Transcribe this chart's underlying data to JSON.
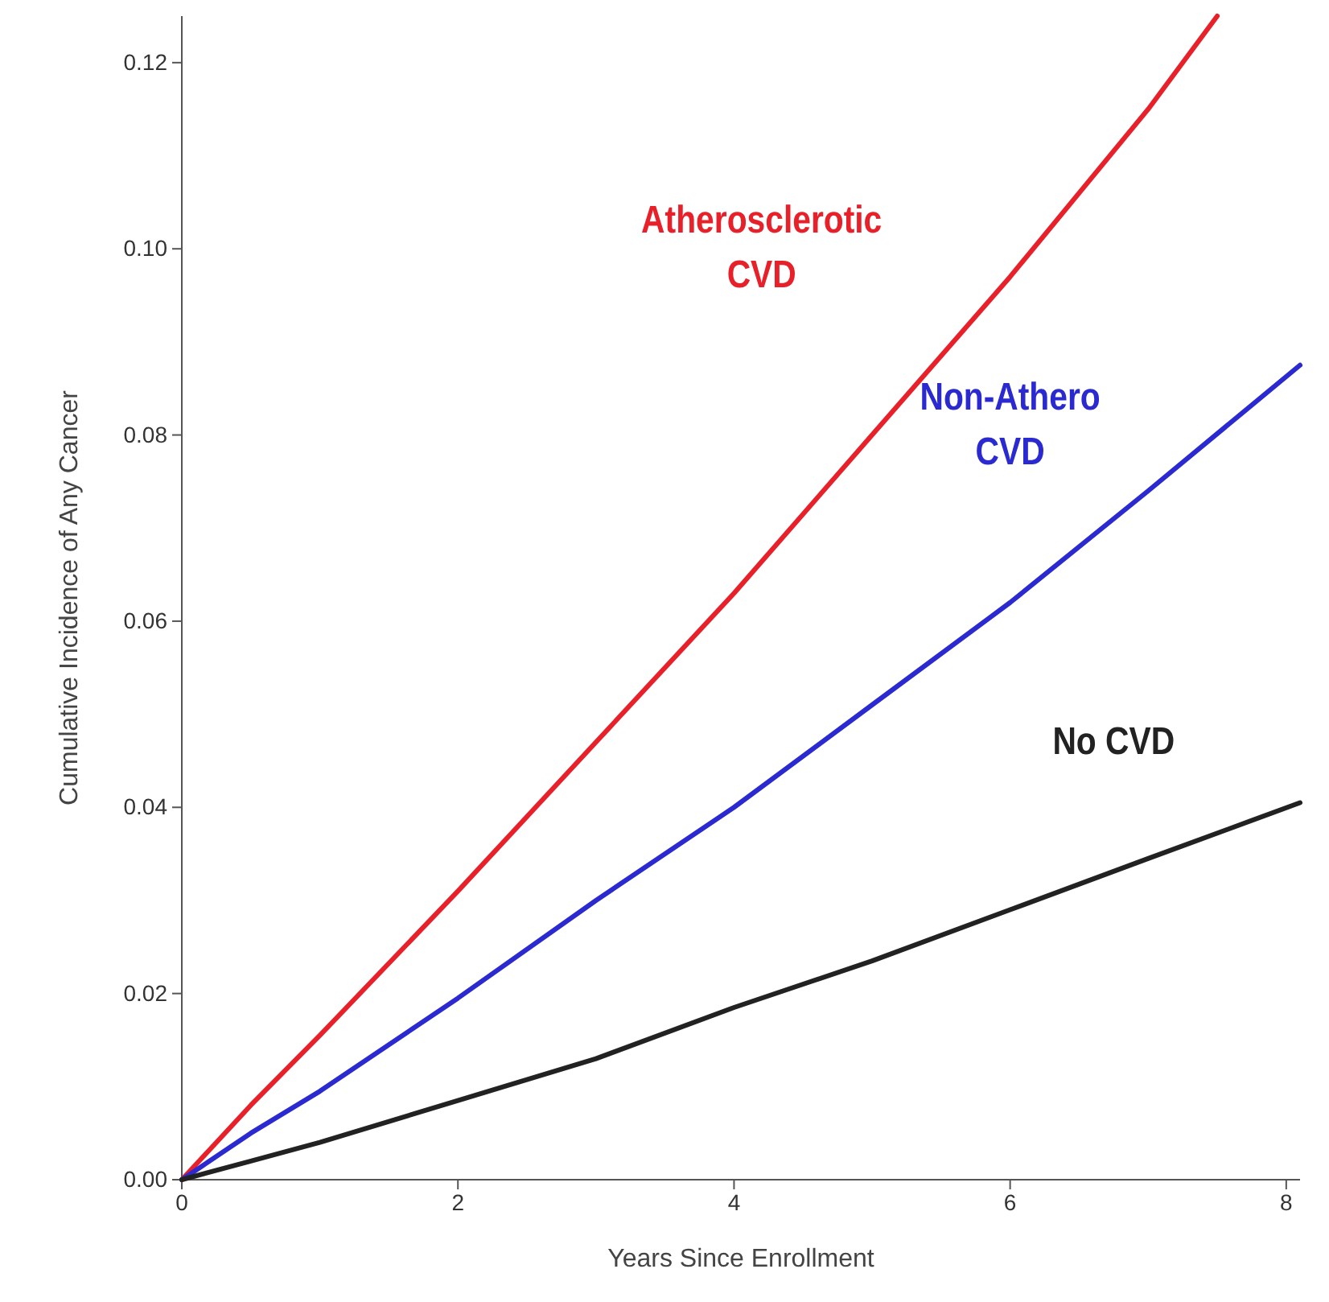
{
  "chart_data": {
    "type": "line",
    "xlabel": "Years Since Enrollment",
    "ylabel": "Cumulative Incidence of Any Cancer",
    "xlim": [
      0,
      8.1
    ],
    "ylim": [
      0,
      0.125
    ],
    "xticks": [
      0,
      2,
      4,
      6,
      8
    ],
    "yticks": [
      {
        "value": 0,
        "label": "0.00"
      },
      {
        "value": 0.02,
        "label": "0.02"
      },
      {
        "value": 0.04,
        "label": "0.04"
      },
      {
        "value": 0.06,
        "label": "0.06"
      },
      {
        "value": 0.08,
        "label": "0.08"
      },
      {
        "value": 0.1,
        "label": "0.10"
      },
      {
        "value": 0.12,
        "label": "0.12"
      }
    ],
    "grid": false,
    "legend": false,
    "marker": "none",
    "line_style": "solid",
    "series": [
      {
        "name": "Atherosclerotic CVD",
        "color": "#e8202a",
        "x": [
          0,
          0.5,
          1,
          2,
          3,
          4,
          5,
          6,
          7,
          7.5
        ],
        "values": [
          0,
          0.008,
          0.0155,
          0.031,
          0.047,
          0.063,
          0.08,
          0.097,
          0.115,
          0.125
        ]
      },
      {
        "name": "Non-Athero CVD",
        "color": "#2a2ad0",
        "x": [
          0,
          0.5,
          1,
          2,
          3,
          4,
          5,
          6,
          7,
          8.1
        ],
        "values": [
          0,
          0.005,
          0.0095,
          0.0195,
          0.03,
          0.04,
          0.051,
          0.062,
          0.074,
          0.0875
        ]
      },
      {
        "name": "No CVD",
        "color": "#222222",
        "x": [
          0,
          0.5,
          1,
          2,
          3,
          4,
          5,
          6,
          7,
          8.1
        ],
        "values": [
          0,
          0.002,
          0.004,
          0.0085,
          0.013,
          0.0185,
          0.0235,
          0.029,
          0.0345,
          0.0405
        ]
      }
    ]
  }
}
